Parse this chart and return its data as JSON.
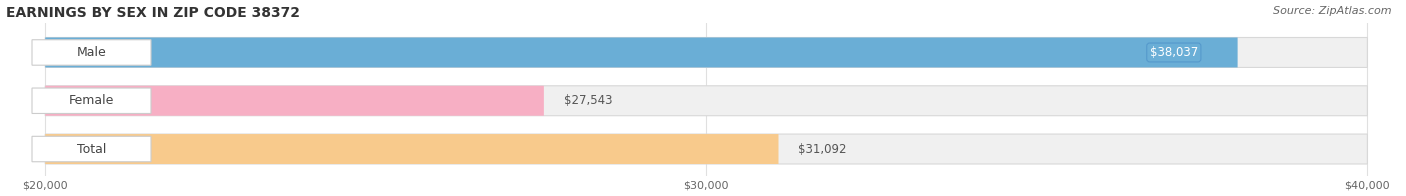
{
  "title": "EARNINGS BY SEX IN ZIP CODE 38372",
  "source": "Source: ZipAtlas.com",
  "categories": [
    "Male",
    "Female",
    "Total"
  ],
  "values": [
    38037,
    27543,
    31092
  ],
  "bar_colors": [
    "#6aaed6",
    "#f7afc4",
    "#f8ca8c"
  ],
  "value_labels": [
    "$38,037",
    "$27,543",
    "$31,092"
  ],
  "value_label_colors": [
    "#ffffff",
    "#888888",
    "#888888"
  ],
  "x_min": 20000,
  "x_max": 40000,
  "x_ticks": [
    20000,
    30000,
    40000
  ],
  "x_tick_labels": [
    "$20,000",
    "$30,000",
    "$40,000"
  ],
  "title_fontsize": 10,
  "source_fontsize": 8,
  "bar_label_fontsize": 9,
  "value_fontsize": 8.5,
  "background_color": "#ffffff",
  "bar_bg_color": "#f0f0f0",
  "bar_height": 0.62,
  "bar_spacing": 1.0,
  "grid_color": "#e0e0e0"
}
